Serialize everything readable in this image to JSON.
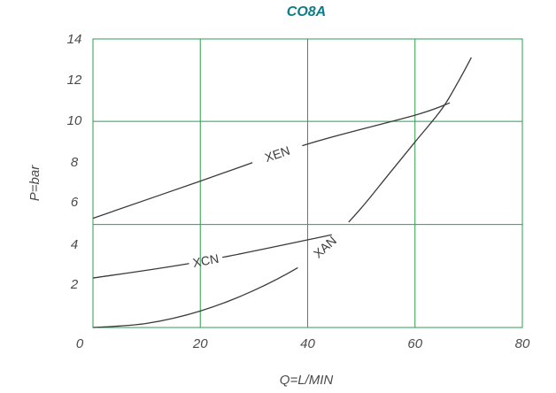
{
  "chart_data": {
    "type": "line",
    "title": "CO8A",
    "xlabel": "Q=L/MIN",
    "ylabel": "P=bar",
    "xlim": [
      0,
      80
    ],
    "ylim": [
      0,
      14
    ],
    "x_ticks": [
      "0",
      "20",
      "40",
      "60",
      "80"
    ],
    "y_ticks": [
      "2",
      "4",
      "6",
      "8",
      "10",
      "12",
      "14"
    ],
    "grid": true,
    "series": [
      {
        "name": "XEN",
        "points": [
          [
            0,
            5.3
          ],
          [
            20,
            7.1
          ],
          [
            40,
            8.9
          ],
          [
            60,
            10.3
          ],
          [
            66.5,
            10.9
          ]
        ]
      },
      {
        "name": "XCN",
        "points": [
          [
            0,
            2.4
          ],
          [
            20,
            3.2
          ],
          [
            44.5,
            4.5
          ]
        ]
      },
      {
        "name": "XAN",
        "points": [
          [
            0,
            0.0
          ],
          [
            10,
            0.2
          ],
          [
            20,
            0.8
          ],
          [
            30,
            1.8
          ],
          [
            40,
            3.2
          ],
          [
            45,
            4.4
          ],
          [
            50,
            5.8
          ],
          [
            55,
            7.4
          ],
          [
            60,
            9.0
          ],
          [
            65,
            10.6
          ],
          [
            68,
            11.9
          ],
          [
            70.5,
            13.1
          ]
        ]
      }
    ],
    "colors": {
      "grid": "#2e9e4f",
      "series": "#3a3a3a",
      "title": "#0e7c86",
      "text": "#4a4a4a"
    }
  }
}
